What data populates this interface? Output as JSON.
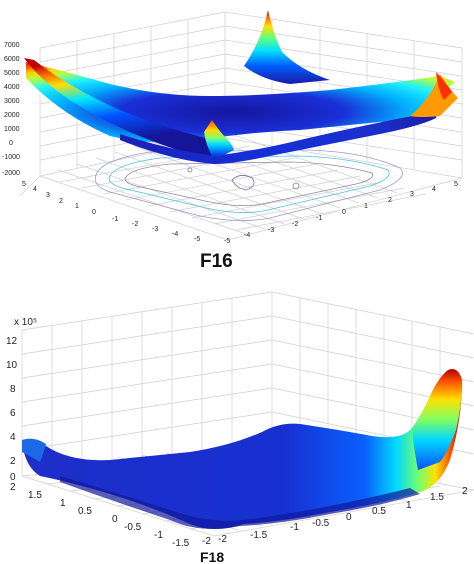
{
  "chart_data": [
    {
      "type": "surface",
      "title": "F16",
      "zlim": [
        -2000,
        7000
      ],
      "z_ticks": [
        "7000",
        "6000",
        "5000",
        "4000",
        "3000",
        "2000",
        "1000",
        "0",
        "-1000",
        "-2000"
      ],
      "x_ticks": [
        "5",
        "4",
        "3",
        "2",
        "1",
        "0",
        "-1",
        "-2",
        "-3",
        "-4",
        "-5"
      ],
      "y_ticks": [
        "-5",
        "-4",
        "-3",
        "-2",
        "-1",
        "0",
        "1",
        "2",
        "3",
        "4",
        "5"
      ],
      "xlim": [
        -5,
        5
      ],
      "ylim": [
        -5,
        5
      ],
      "colormap": "jet",
      "grid": true,
      "contour_projection": true
    },
    {
      "type": "surface",
      "title": "F18",
      "zlim": [
        0,
        12
      ],
      "z_multiplier": "x 10⁵",
      "z_ticks": [
        "12",
        "10",
        "8",
        "6",
        "4",
        "2",
        "0"
      ],
      "x_ticks": [
        "2",
        "1.5",
        "1",
        "0.5",
        "0",
        "-0.5",
        "-1",
        "-1.5",
        "-2"
      ],
      "y_ticks": [
        "-2",
        "-1.5",
        "-1",
        "-0.5",
        "0",
        "0.5",
        "1",
        "1.5",
        "2"
      ],
      "xlim": [
        -2,
        2
      ],
      "ylim": [
        -2,
        2
      ],
      "colormap": "jet",
      "grid": true
    }
  ],
  "colors": {
    "low": "#1a1aa8",
    "mid": "#00d8ff",
    "high": "#ffdd00",
    "top": "#c80000",
    "grid": "#cfcfcf"
  }
}
